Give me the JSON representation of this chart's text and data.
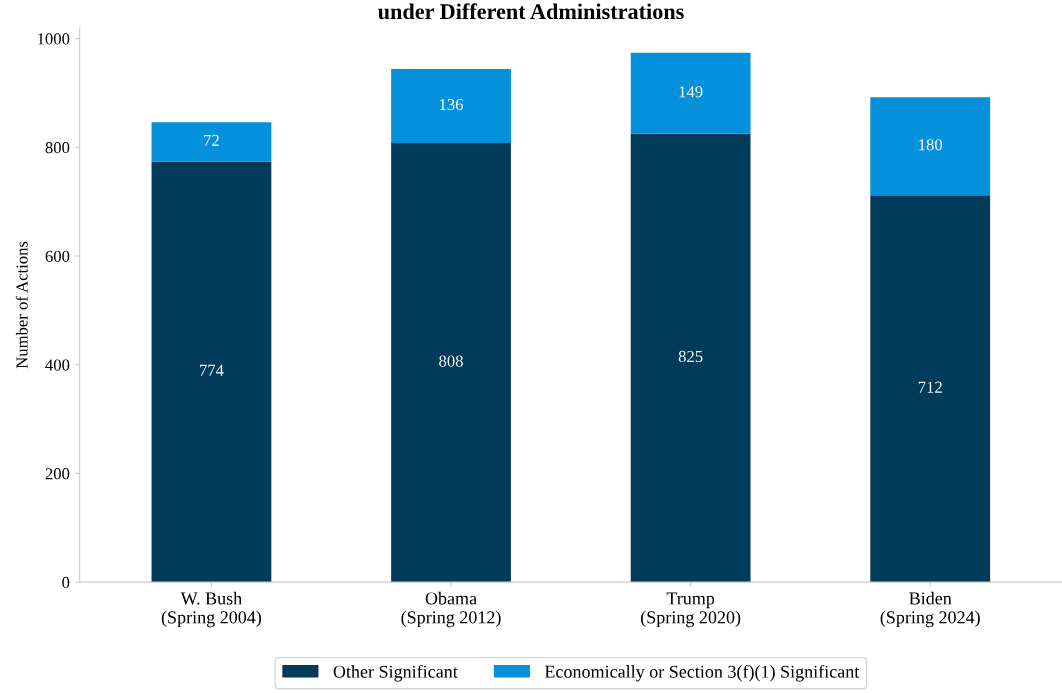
{
  "chart_data": {
    "type": "bar",
    "title": "under Different Administrations",
    "ylabel": "Number of Actions",
    "categories": [
      "W. Bush\n(Spring 2004)",
      "Obama\n(Spring 2012)",
      "Trump\n(Spring 2020)",
      "Biden\n(Spring 2024)"
    ],
    "series": [
      {
        "name": "Other Significant",
        "color": "#023a5a",
        "values": [
          774,
          808,
          825,
          712
        ]
      },
      {
        "name": "Economically or Section 3(f)(1) Significant",
        "color": "#0590dc",
        "values": [
          72,
          136,
          149,
          180
        ]
      }
    ],
    "stacked": true,
    "ylim": [
      0,
      1020
    ],
    "yticks": [
      0,
      200,
      400,
      600,
      800,
      1000
    ],
    "data_labels": true,
    "grid": false,
    "legend": "bottom"
  }
}
